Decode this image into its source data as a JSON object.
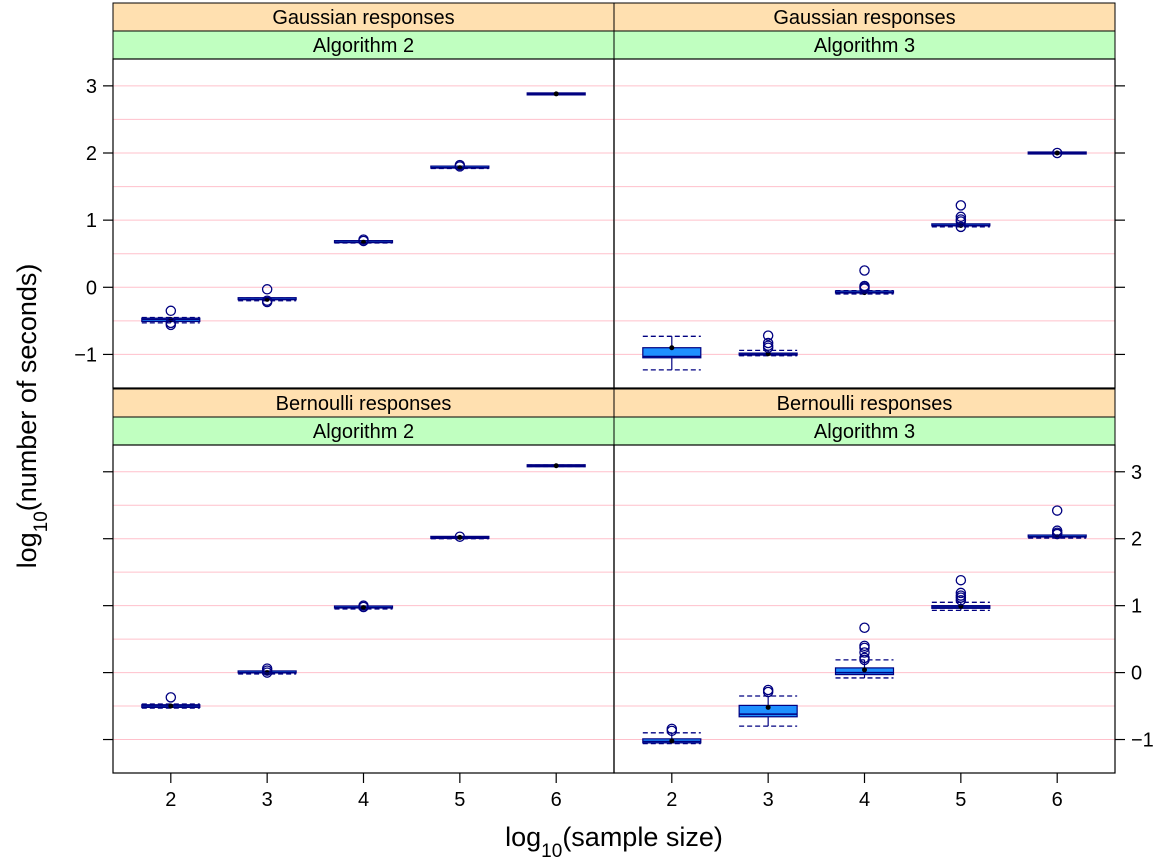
{
  "chart_data": {
    "type": "box",
    "xlabel": "log10(sample size)",
    "xlabel_base": "log",
    "xlabel_sub": "10",
    "xlabel_rest": "(sample size)",
    "ylabel": "log10(number of seconds)",
    "ylabel_base": "log",
    "ylabel_sub": "10",
    "ylabel_rest": "(number of seconds)",
    "x_ticks": [
      2,
      3,
      4,
      5,
      6
    ],
    "y_ticks": [
      -1,
      0,
      1,
      2,
      3
    ],
    "y_tick_labels": [
      "−1",
      "0",
      "1",
      "2",
      "3"
    ],
    "ylim": [
      -1.5,
      3.4
    ],
    "xlim": [
      1.4,
      6.6
    ],
    "grid": true,
    "panels": [
      {
        "row": "top",
        "col": "left",
        "strip_outer": "Gaussian responses",
        "strip_inner": "Algorithm 2",
        "boxes": [
          {
            "x": 2,
            "q1": -0.51,
            "median": -0.48,
            "q3": -0.46,
            "whisker_low": -0.53,
            "whisker_high": -0.45,
            "mean": -0.48,
            "outliers": [
              -0.35,
              -0.53,
              -0.56
            ]
          },
          {
            "x": 3,
            "q1": -0.19,
            "median": -0.18,
            "q3": -0.17,
            "whisker_low": -0.2,
            "whisker_high": -0.16,
            "mean": -0.18,
            "outliers": [
              -0.03,
              -0.2,
              -0.22
            ]
          },
          {
            "x": 4,
            "q1": 0.67,
            "median": 0.67,
            "q3": 0.68,
            "whisker_low": 0.66,
            "whisker_high": 0.69,
            "mean": 0.67,
            "outliers": [
              0.69,
              0.71
            ]
          },
          {
            "x": 5,
            "q1": 1.78,
            "median": 1.78,
            "q3": 1.79,
            "whisker_low": 1.77,
            "whisker_high": 1.8,
            "mean": 1.78,
            "outliers": [
              1.8,
              1.82
            ]
          },
          {
            "x": 6,
            "q1": 2.88,
            "median": 2.88,
            "q3": 2.88,
            "whisker_low": 2.87,
            "whisker_high": 2.89,
            "mean": 2.88,
            "outliers": []
          }
        ]
      },
      {
        "row": "top",
        "col": "right",
        "strip_outer": "Gaussian responses",
        "strip_inner": "Algorithm 3",
        "boxes": [
          {
            "x": 2,
            "q1": -1.05,
            "median": -1.03,
            "q3": -0.9,
            "whisker_low": -1.23,
            "whisker_high": -0.73,
            "mean": -0.9,
            "outliers": []
          },
          {
            "x": 3,
            "q1": -1.01,
            "median": -1.0,
            "q3": -0.98,
            "whisker_low": -1.02,
            "whisker_high": -0.94,
            "mean": -0.99,
            "outliers": [
              -0.72,
              -0.83,
              -0.87,
              -0.9
            ]
          },
          {
            "x": 4,
            "q1": -0.09,
            "median": -0.08,
            "q3": -0.07,
            "whisker_low": -0.1,
            "whisker_high": -0.05,
            "mean": -0.08,
            "outliers": [
              0.25,
              0.02,
              0.0,
              -0.02
            ]
          },
          {
            "x": 5,
            "q1": 0.91,
            "median": 0.92,
            "q3": 0.93,
            "whisker_low": 0.9,
            "whisker_high": 0.94,
            "mean": 0.92,
            "outliers": [
              1.22,
              1.05,
              1.01,
              0.98,
              0.9
            ]
          },
          {
            "x": 6,
            "q1": 2.0,
            "median": 2.0,
            "q3": 2.0,
            "whisker_low": 1.99,
            "whisker_high": 2.01,
            "mean": 2.0,
            "outliers": [
              2.0
            ]
          }
        ]
      },
      {
        "row": "bottom",
        "col": "left",
        "strip_outer": "Bernoulli responses",
        "strip_inner": "Algorithm 2",
        "boxes": [
          {
            "x": 2,
            "q1": -0.52,
            "median": -0.5,
            "q3": -0.48,
            "whisker_low": -0.53,
            "whisker_high": -0.47,
            "mean": -0.5,
            "outliers": [
              -0.37
            ]
          },
          {
            "x": 3,
            "q1": -0.01,
            "median": 0.0,
            "q3": 0.01,
            "whisker_low": -0.02,
            "whisker_high": 0.02,
            "mean": 0.0,
            "outliers": [
              0.06,
              0.03,
              0.0
            ]
          },
          {
            "x": 4,
            "q1": 0.96,
            "median": 0.97,
            "q3": 0.98,
            "whisker_low": 0.95,
            "whisker_high": 0.99,
            "mean": 0.97,
            "outliers": [
              1.0,
              0.98
            ]
          },
          {
            "x": 5,
            "q1": 2.01,
            "median": 2.02,
            "q3": 2.02,
            "whisker_low": 2.0,
            "whisker_high": 2.03,
            "mean": 2.02,
            "outliers": [
              2.03
            ]
          },
          {
            "x": 6,
            "q1": 3.09,
            "median": 3.09,
            "q3": 3.09,
            "whisker_low": 3.08,
            "whisker_high": 3.1,
            "mean": 3.09,
            "outliers": []
          }
        ]
      },
      {
        "row": "bottom",
        "col": "right",
        "strip_outer": "Bernoulli responses",
        "strip_inner": "Algorithm 3",
        "boxes": [
          {
            "x": 2,
            "q1": -1.05,
            "median": -1.03,
            "q3": -0.99,
            "whisker_low": -1.06,
            "whisker_high": -0.9,
            "mean": -1.02,
            "outliers": [
              -0.84,
              -0.87
            ]
          },
          {
            "x": 3,
            "q1": -0.66,
            "median": -0.62,
            "q3": -0.49,
            "whisker_low": -0.8,
            "whisker_high": -0.35,
            "mean": -0.52,
            "outliers": [
              -0.26,
              -0.29
            ]
          },
          {
            "x": 4,
            "q1": -0.03,
            "median": 0.0,
            "q3": 0.07,
            "whisker_low": -0.08,
            "whisker_high": 0.19,
            "mean": 0.04,
            "outliers": [
              0.67,
              0.4,
              0.37,
              0.3,
              0.22,
              0.19
            ]
          },
          {
            "x": 5,
            "q1": 0.96,
            "median": 0.98,
            "q3": 1.0,
            "whisker_low": 0.93,
            "whisker_high": 1.05,
            "mean": 0.99,
            "outliers": [
              1.38,
              1.19,
              1.15,
              1.12,
              1.08
            ]
          },
          {
            "x": 6,
            "q1": 2.02,
            "median": 2.03,
            "q3": 2.04,
            "whisker_low": 2.01,
            "whisker_high": 2.05,
            "mean": 2.03,
            "outliers": [
              2.42,
              2.12,
              2.09,
              2.07
            ]
          }
        ]
      }
    ],
    "colors": {
      "strip_outer": "#ffe0b0",
      "strip_inner": "#c0ffc0",
      "grid": "#ffc0cb",
      "box_fill": "#1e90ff",
      "box_stroke": "#000080",
      "point": "#000080"
    }
  }
}
